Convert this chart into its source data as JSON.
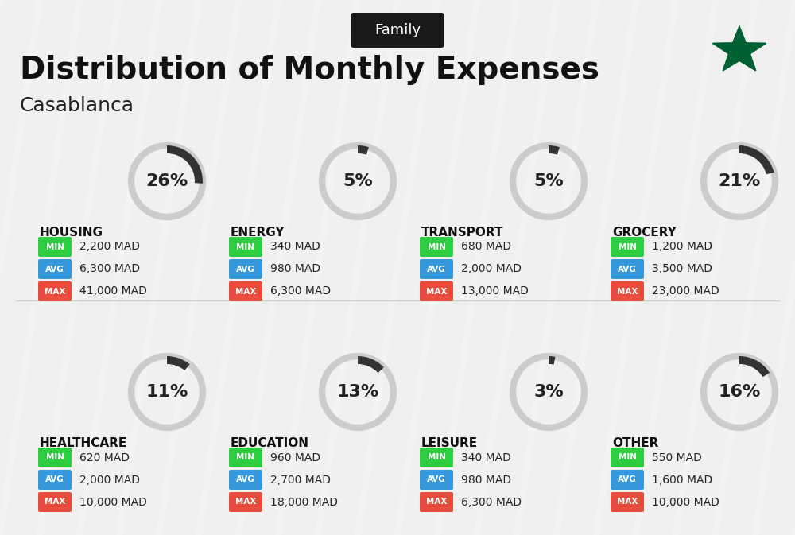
{
  "title": "Distribution of Monthly Expenses",
  "subtitle": "Family",
  "city": "Casablanca",
  "background_color": "#f0f0f0",
  "categories": [
    {
      "name": "HOUSING",
      "pct": 26,
      "min_val": "2,200 MAD",
      "avg_val": "6,300 MAD",
      "max_val": "41,000 MAD",
      "row": 0,
      "col": 0
    },
    {
      "name": "ENERGY",
      "pct": 5,
      "min_val": "340 MAD",
      "avg_val": "980 MAD",
      "max_val": "6,300 MAD",
      "row": 0,
      "col": 1
    },
    {
      "name": "TRANSPORT",
      "pct": 5,
      "min_val": "680 MAD",
      "avg_val": "2,000 MAD",
      "max_val": "13,000 MAD",
      "row": 0,
      "col": 2
    },
    {
      "name": "GROCERY",
      "pct": 21,
      "min_val": "1,200 MAD",
      "avg_val": "3,500 MAD",
      "max_val": "23,000 MAD",
      "row": 0,
      "col": 3
    },
    {
      "name": "HEALTHCARE",
      "pct": 11,
      "min_val": "620 MAD",
      "avg_val": "2,000 MAD",
      "max_val": "10,000 MAD",
      "row": 1,
      "col": 0
    },
    {
      "name": "EDUCATION",
      "pct": 13,
      "min_val": "960 MAD",
      "avg_val": "2,700 MAD",
      "max_val": "18,000 MAD",
      "row": 1,
      "col": 1
    },
    {
      "name": "LEISURE",
      "pct": 3,
      "min_val": "340 MAD",
      "avg_val": "980 MAD",
      "max_val": "6,300 MAD",
      "row": 1,
      "col": 2
    },
    {
      "name": "OTHER",
      "pct": 16,
      "min_val": "550 MAD",
      "avg_val": "1,600 MAD",
      "max_val": "10,000 MAD",
      "row": 1,
      "col": 3
    }
  ],
  "min_color": "#2ecc40",
  "avg_color": "#3498db",
  "max_color": "#e74c3c",
  "label_color_min": "#27ae60",
  "label_color_avg": "#2980b9",
  "label_color_max": "#c0392b",
  "donut_color": "#333333",
  "donut_bg": "#cccccc",
  "title_fontsize": 28,
  "subtitle_fontsize": 13,
  "city_fontsize": 18,
  "cat_fontsize": 11,
  "pct_fontsize": 16,
  "val_fontsize": 10
}
